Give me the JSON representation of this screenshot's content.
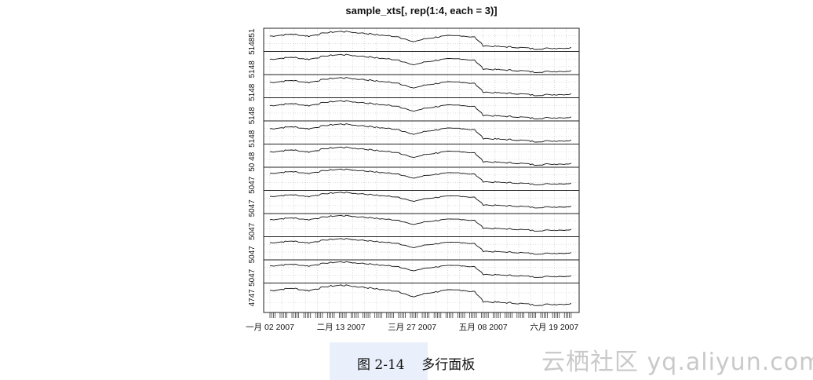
{
  "chart_data": {
    "type": "line",
    "title": "sample_xts[, rep(1:4, each = 3)]",
    "layout": "multi-panel (12 stacked panels)",
    "x_tick_labels": [
      "一月 02 2007",
      "二月 13 2007",
      "三月 27 2007",
      "五月 08 2007",
      "六月 19 2007"
    ],
    "x_range": [
      "2007-01-02",
      "2007-06-30"
    ],
    "grid": true,
    "grid_style": "dotted",
    "panels": [
      {
        "ytick_label": "5148",
        "top_label": "51",
        "ylim": [
          47.6,
          51.4
        ],
        "column": 1
      },
      {
        "ytick_label": "5148",
        "ylim": [
          47.6,
          51.4
        ],
        "column": 1
      },
      {
        "ytick_label": "5148",
        "ylim": [
          47.6,
          51.4
        ],
        "column": 1
      },
      {
        "ytick_label": "5148",
        "ylim": [
          47.6,
          51.4
        ],
        "column": 2
      },
      {
        "ytick_label": "5148",
        "ylim": [
          47.6,
          51.4
        ],
        "column": 2
      },
      {
        "ytick_label": "50 48",
        "ylim": [
          47.6,
          51.4
        ],
        "column": 2
      },
      {
        "ytick_label": "5047",
        "ylim": [
          46.8,
          51.2
        ],
        "column": 3
      },
      {
        "ytick_label": "5047",
        "ylim": [
          46.8,
          51.2
        ],
        "column": 3
      },
      {
        "ytick_label": "5047",
        "ylim": [
          46.8,
          51.2
        ],
        "column": 3
      },
      {
        "ytick_label": "5047",
        "ylim": [
          46.8,
          51.2
        ],
        "column": 4
      },
      {
        "ytick_label": "5047",
        "ylim": [
          46.8,
          51.2
        ],
        "column": 4
      },
      {
        "ytick_label": "4747",
        "ylim": [
          46.8,
          51.2
        ],
        "column": 4
      }
    ],
    "series_shape": {
      "description": "Daily OHLC-style price series, identical shape repeated per panel",
      "x": [
        "2007-01-02",
        "2007-01-15",
        "2007-01-25",
        "2007-02-05",
        "2007-02-13",
        "2007-02-25",
        "2007-03-08",
        "2007-03-19",
        "2007-03-27",
        "2007-04-05",
        "2007-04-15",
        "2007-04-25",
        "2007-05-03",
        "2007-05-08",
        "2007-05-18",
        "2007-05-28",
        "2007-06-07",
        "2007-06-19",
        "2007-06-30"
      ],
      "y": [
        50.2,
        50.6,
        50.2,
        50.9,
        51.1,
        50.8,
        50.4,
        50.1,
        49.1,
        49.8,
        50.2,
        50.3,
        50.0,
        48.4,
        48.2,
        48.1,
        47.8,
        47.9,
        48.0
      ]
    }
  },
  "caption": "图 2-14    多行面板",
  "watermark": "云栖社区 yq.aliyun.com"
}
